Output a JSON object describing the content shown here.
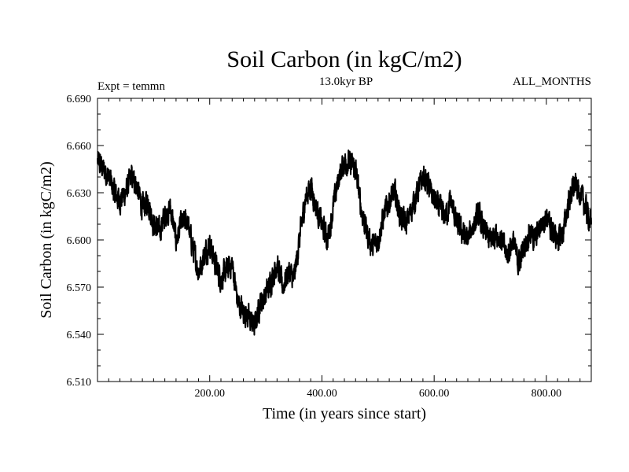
{
  "chart_data": {
    "type": "line",
    "title": "Soil Carbon (in kgC/m2)",
    "subtitle_left": "Expt = temmn",
    "subtitle_center": "13.0kyr BP",
    "subtitle_right": "ALL_MONTHS",
    "xlabel": "Time (in years since start)",
    "ylabel": "Soil Carbon (in kgC/m2)",
    "xlim": [
      0,
      880
    ],
    "ylim": [
      6.51,
      6.69
    ],
    "x_ticks": [
      200,
      400,
      600,
      800
    ],
    "x_tick_labels": [
      "200.00",
      "400.00",
      "600.00",
      "800.00"
    ],
    "y_ticks": [
      6.51,
      6.54,
      6.57,
      6.6,
      6.63,
      6.66,
      6.69
    ],
    "y_tick_labels": [
      "6.510",
      "6.540",
      "6.570",
      "6.600",
      "6.630",
      "6.660",
      "6.690"
    ],
    "line_color": "#000000",
    "series": [
      {
        "name": "soil carbon",
        "x": [
          0,
          10,
          20,
          30,
          40,
          50,
          60,
          70,
          80,
          90,
          100,
          110,
          120,
          130,
          140,
          150,
          160,
          170,
          180,
          190,
          200,
          210,
          220,
          230,
          240,
          250,
          260,
          270,
          280,
          290,
          300,
          310,
          320,
          330,
          340,
          350,
          360,
          370,
          380,
          390,
          400,
          410,
          420,
          430,
          440,
          450,
          460,
          470,
          480,
          490,
          500,
          510,
          520,
          530,
          540,
          550,
          560,
          570,
          580,
          590,
          600,
          610,
          620,
          630,
          640,
          650,
          660,
          670,
          680,
          690,
          700,
          710,
          720,
          730,
          740,
          750,
          760,
          770,
          780,
          790,
          800,
          810,
          820,
          830,
          840,
          850,
          860,
          870,
          880
        ],
        "y": [
          6.65,
          6.645,
          6.64,
          6.63,
          6.625,
          6.63,
          6.64,
          6.635,
          6.62,
          6.625,
          6.61,
          6.605,
          6.615,
          6.62,
          6.6,
          6.61,
          6.612,
          6.595,
          6.58,
          6.59,
          6.598,
          6.585,
          6.575,
          6.58,
          6.585,
          6.56,
          6.555,
          6.55,
          6.545,
          6.56,
          6.565,
          6.575,
          6.585,
          6.57,
          6.58,
          6.575,
          6.6,
          6.625,
          6.635,
          6.62,
          6.61,
          6.6,
          6.62,
          6.64,
          6.65,
          6.648,
          6.645,
          6.62,
          6.605,
          6.595,
          6.6,
          6.615,
          6.625,
          6.63,
          6.615,
          6.61,
          6.62,
          6.63,
          6.64,
          6.635,
          6.625,
          6.62,
          6.615,
          6.625,
          6.61,
          6.605,
          6.6,
          6.61,
          6.615,
          6.605,
          6.6,
          6.605,
          6.6,
          6.59,
          6.6,
          6.585,
          6.595,
          6.605,
          6.6,
          6.61,
          6.615,
          6.605,
          6.6,
          6.605,
          6.625,
          6.635,
          6.63,
          6.62,
          6.61
        ]
      }
    ]
  }
}
